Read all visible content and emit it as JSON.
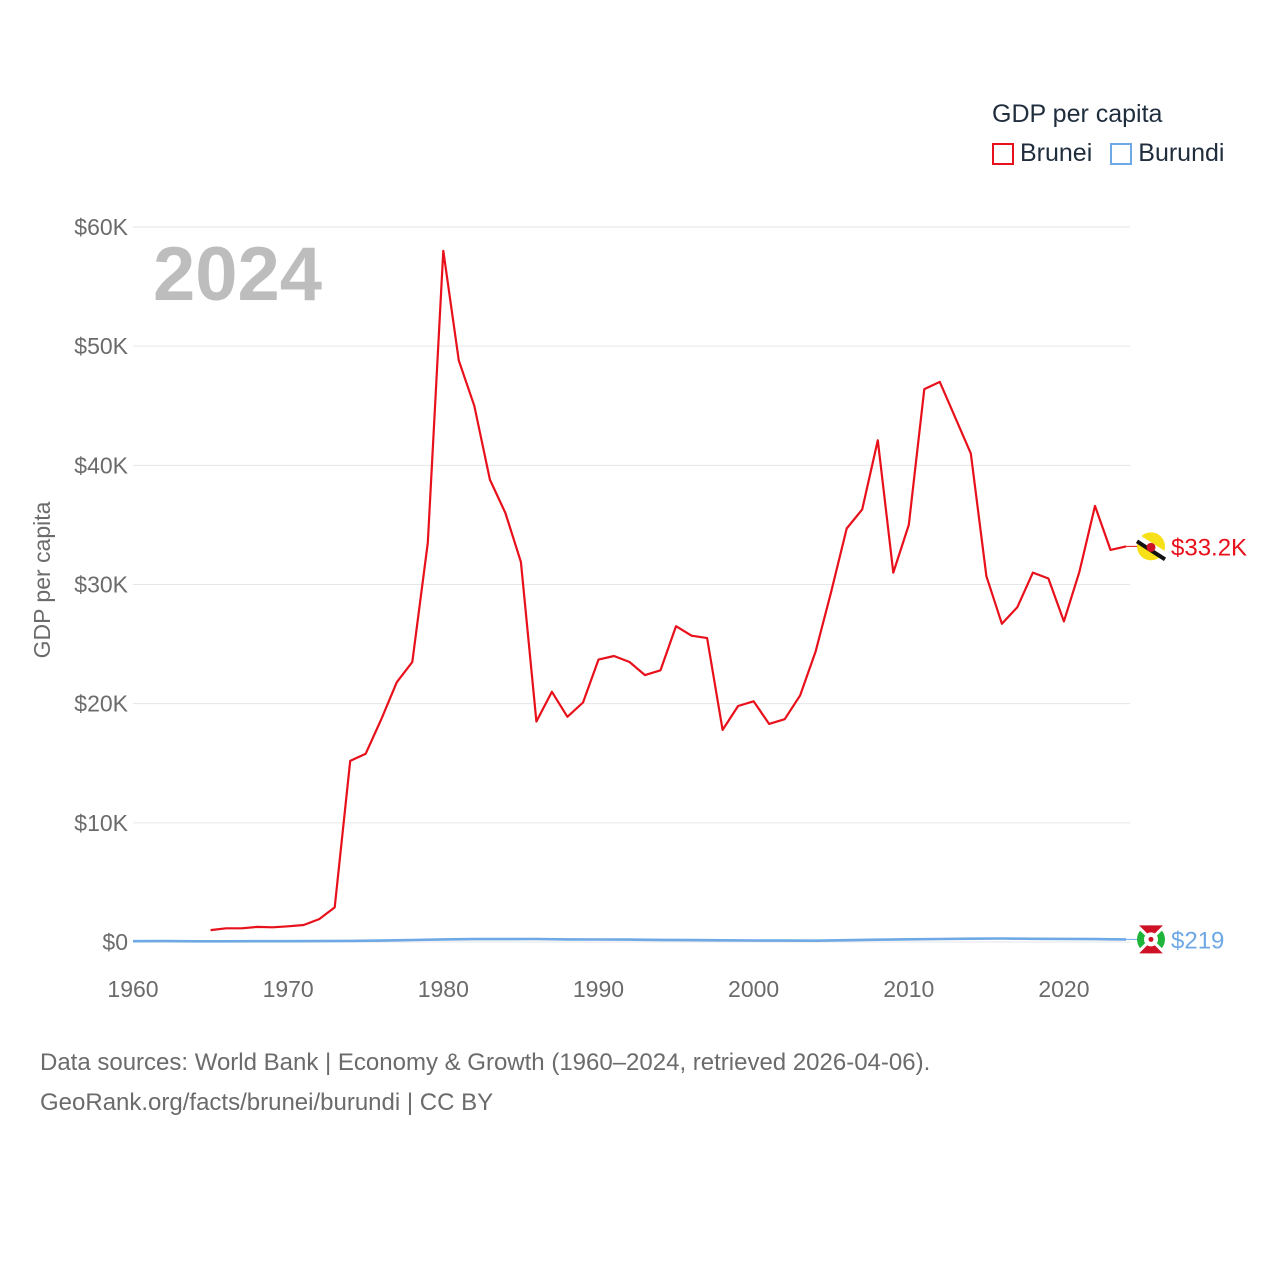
{
  "chart_data": {
    "type": "line",
    "title": "GDP per capita",
    "ylabel": "GDP per capita",
    "xlabel": "",
    "year_label": "2024",
    "xlim": [
      1960,
      2024
    ],
    "ylim": [
      0,
      60000
    ],
    "x_ticks": [
      {
        "value": 1960,
        "label": "1960"
      },
      {
        "value": 1970,
        "label": "1970"
      },
      {
        "value": 1980,
        "label": "1980"
      },
      {
        "value": 1990,
        "label": "1990"
      },
      {
        "value": 2000,
        "label": "2000"
      },
      {
        "value": 2010,
        "label": "2010"
      },
      {
        "value": 2020,
        "label": "2020"
      }
    ],
    "y_ticks": [
      {
        "value": 0,
        "label": "$0"
      },
      {
        "value": 10000,
        "label": "$10K"
      },
      {
        "value": 20000,
        "label": "$20K"
      },
      {
        "value": 30000,
        "label": "$30K"
      },
      {
        "value": 40000,
        "label": "$40K"
      },
      {
        "value": 50000,
        "label": "$50K"
      },
      {
        "value": 60000,
        "label": "$60K"
      }
    ],
    "legend": {
      "title": "GDP per capita",
      "position": "top-right"
    },
    "series": [
      {
        "name": "Brunei",
        "color": "#e8101a",
        "flag_icon": "brunei-flag-icon",
        "end_label": "$33.2K",
        "points": [
          [
            1965,
            1000
          ],
          [
            1966,
            1150
          ],
          [
            1967,
            1150
          ],
          [
            1968,
            1270
          ],
          [
            1969,
            1230
          ],
          [
            1970,
            1320
          ],
          [
            1971,
            1430
          ],
          [
            1972,
            1920
          ],
          [
            1973,
            2900
          ],
          [
            1974,
            15200
          ],
          [
            1975,
            15800
          ],
          [
            1976,
            18700
          ],
          [
            1977,
            21800
          ],
          [
            1978,
            23500
          ],
          [
            1979,
            33500
          ],
          [
            1980,
            58000
          ],
          [
            1981,
            48800
          ],
          [
            1982,
            45000
          ],
          [
            1983,
            38800
          ],
          [
            1984,
            36000
          ],
          [
            1985,
            31900
          ],
          [
            1986,
            18500
          ],
          [
            1987,
            21000
          ],
          [
            1988,
            18900
          ],
          [
            1989,
            20100
          ],
          [
            1990,
            23700
          ],
          [
            1991,
            24000
          ],
          [
            1992,
            23500
          ],
          [
            1993,
            22400
          ],
          [
            1994,
            22800
          ],
          [
            1995,
            26500
          ],
          [
            1996,
            25700
          ],
          [
            1997,
            25500
          ],
          [
            1998,
            17800
          ],
          [
            1999,
            19800
          ],
          [
            2000,
            20200
          ],
          [
            2001,
            18300
          ],
          [
            2002,
            18700
          ],
          [
            2003,
            20700
          ],
          [
            2004,
            24400
          ],
          [
            2005,
            29400
          ],
          [
            2006,
            34700
          ],
          [
            2007,
            36300
          ],
          [
            2008,
            42100
          ],
          [
            2009,
            31000
          ],
          [
            2010,
            35000
          ],
          [
            2011,
            46400
          ],
          [
            2012,
            47000
          ],
          [
            2013,
            44000
          ],
          [
            2014,
            41000
          ],
          [
            2015,
            30700
          ],
          [
            2016,
            26700
          ],
          [
            2017,
            28100
          ],
          [
            2018,
            31000
          ],
          [
            2019,
            30500
          ],
          [
            2020,
            26900
          ],
          [
            2021,
            31100
          ],
          [
            2022,
            36600
          ],
          [
            2023,
            32900
          ],
          [
            2024,
            33200
          ]
        ]
      },
      {
        "name": "Burundi",
        "color": "#6ea8e5",
        "flag_icon": "burundi-flag-icon",
        "end_label": "$219",
        "points": [
          [
            1960,
            70
          ],
          [
            1962,
            75
          ],
          [
            1964,
            60
          ],
          [
            1966,
            55
          ],
          [
            1968,
            65
          ],
          [
            1970,
            70
          ],
          [
            1972,
            72
          ],
          [
            1974,
            90
          ],
          [
            1976,
            120
          ],
          [
            1978,
            170
          ],
          [
            1980,
            220
          ],
          [
            1982,
            245
          ],
          [
            1984,
            240
          ],
          [
            1986,
            250
          ],
          [
            1988,
            220
          ],
          [
            1990,
            210
          ],
          [
            1992,
            200
          ],
          [
            1994,
            180
          ],
          [
            1996,
            160
          ],
          [
            1998,
            140
          ],
          [
            2000,
            130
          ],
          [
            2002,
            115
          ],
          [
            2004,
            110
          ],
          [
            2006,
            150
          ],
          [
            2008,
            190
          ],
          [
            2010,
            230
          ],
          [
            2012,
            250
          ],
          [
            2014,
            280
          ],
          [
            2016,
            290
          ],
          [
            2018,
            270
          ],
          [
            2020,
            260
          ],
          [
            2022,
            240
          ],
          [
            2023,
            230
          ],
          [
            2024,
            219
          ]
        ]
      }
    ]
  },
  "footer": {
    "line1": "Data sources: World Bank | Economy & Growth (1960–2024, retrieved 2026-04-06).",
    "line2": "GeoRank.org/facts/brunei/burundi | CC BY"
  }
}
